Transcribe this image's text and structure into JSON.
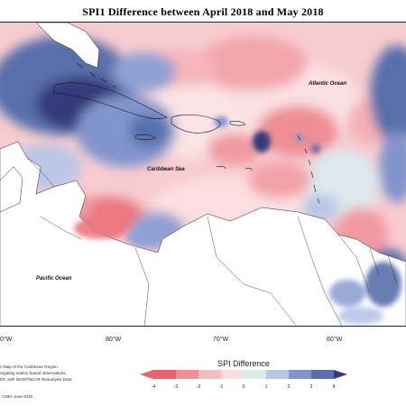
{
  "title": "SPI1 Difference between April 2018 and May 2018",
  "labels": {
    "atlantic": "Atlantic Ocean",
    "caribbean": "Caribbean Sea",
    "pacific": "Pacific Ocean"
  },
  "longitudes": [
    "80°W",
    "70°W",
    "60°W"
  ],
  "longitude_partial_left": "0°W",
  "caption_lines": [
    "n Map of the Caribbean Region.",
    "regating station based observations,",
    "DF, with NCEP/NCAR Reanalysis Data."
  ],
  "credit": "CIMH June-2018",
  "legend": {
    "title": "SPI Difference",
    "ticks": [
      "-4",
      "-3",
      "-2",
      "-1",
      "0",
      "1",
      "2",
      "3",
      "4"
    ],
    "colors": [
      "#e8636e",
      "#f08f96",
      "#f7bcc0",
      "#fbdfe0",
      "#d9ece8",
      "#b9c6e6",
      "#8194cc",
      "#5870aa",
      "#353b7a"
    ]
  },
  "palette": {
    "land": "#ffffff",
    "wet_strong": "#353b7a",
    "wet": "#5870aa",
    "wet_light": "#8fa1d3",
    "neutral": "#d9ece8",
    "dry_light": "#fbdfe0",
    "dry": "#f5b7bc",
    "dry_strong": "#ec7a82"
  }
}
